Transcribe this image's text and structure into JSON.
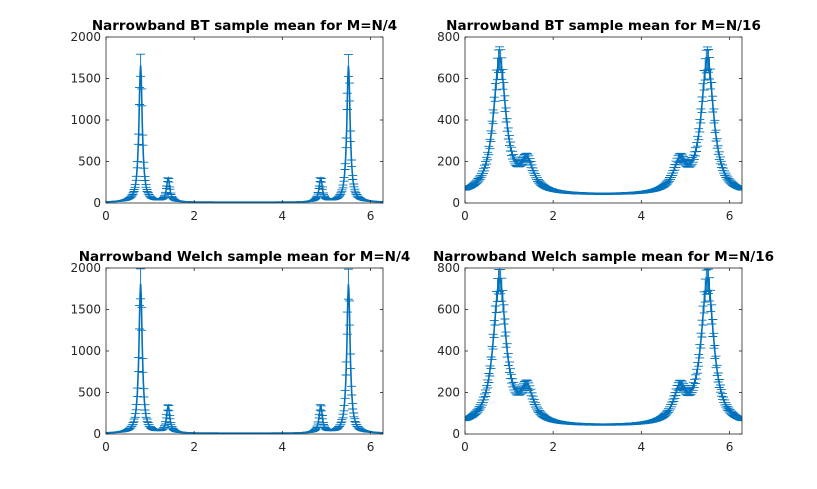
{
  "figure": {
    "background": "#ffffff"
  },
  "chart_data": [
    {
      "type": "line",
      "title": "Narrowband BT sample mean for M=N/4",
      "xlabel": "",
      "ylabel": "",
      "xlim": [
        0,
        6.283
      ],
      "ylim": [
        0,
        2000
      ],
      "xticks": [
        "0",
        "2",
        "4",
        "6"
      ],
      "yticks": [
        "0",
        "500",
        "1000",
        "1500",
        "2000"
      ],
      "error_bars": true,
      "color": "#0072BD",
      "peaks": [
        {
          "center": 0.785,
          "height": 1650,
          "width": 0.045
        },
        {
          "center": 1.41,
          "height": 280,
          "width": 0.045
        },
        {
          "center": 4.87,
          "height": 280,
          "width": 0.045
        },
        {
          "center": 5.5,
          "height": 1650,
          "width": 0.045
        }
      ],
      "baseline": 8,
      "error_ratio": 0.08
    },
    {
      "type": "line",
      "title": "Narrowband BT sample mean for M=N/16",
      "xlabel": "",
      "ylabel": "",
      "xlim": [
        0,
        6.283
      ],
      "ylim": [
        0,
        800
      ],
      "xticks": [
        "0",
        "2",
        "4",
        "6"
      ],
      "yticks": [
        "0",
        "200",
        "400",
        "600",
        "800"
      ],
      "error_bars": true,
      "color": "#0072BD",
      "peaks": [
        {
          "center": 0.785,
          "height": 650,
          "width": 0.17
        },
        {
          "center": 1.41,
          "height": 140,
          "width": 0.18
        },
        {
          "center": 4.87,
          "height": 140,
          "width": 0.18
        },
        {
          "center": 5.5,
          "height": 650,
          "width": 0.17
        }
      ],
      "baseline": 35,
      "error_ratio": 0.08
    },
    {
      "type": "line",
      "title": "Narrowband Welch sample mean for M=N/4",
      "xlabel": "",
      "ylabel": "",
      "xlim": [
        0,
        6.283
      ],
      "ylim": [
        0,
        2000
      ],
      "xticks": [
        "0",
        "2",
        "4",
        "6"
      ],
      "yticks": [
        "0",
        "500",
        "1000",
        "1500",
        "2000"
      ],
      "error_bars": true,
      "color": "#0072BD",
      "peaks": [
        {
          "center": 0.785,
          "height": 1800,
          "width": 0.045
        },
        {
          "center": 1.41,
          "height": 320,
          "width": 0.045
        },
        {
          "center": 4.87,
          "height": 320,
          "width": 0.045
        },
        {
          "center": 5.5,
          "height": 1800,
          "width": 0.045
        }
      ],
      "baseline": 8,
      "error_ratio": 0.1
    },
    {
      "type": "line",
      "title": "Narrowband Welch sample mean for M=N/16",
      "xlabel": "",
      "ylabel": "",
      "xlim": [
        0,
        6.283
      ],
      "ylim": [
        0,
        800
      ],
      "xticks": [
        "0",
        "2",
        "4",
        "6"
      ],
      "yticks": [
        "0",
        "200",
        "400",
        "600",
        "800"
      ],
      "error_bars": true,
      "color": "#0072BD",
      "peaks": [
        {
          "center": 0.785,
          "height": 700,
          "width": 0.17
        },
        {
          "center": 1.41,
          "height": 155,
          "width": 0.18
        },
        {
          "center": 4.87,
          "height": 155,
          "width": 0.18
        },
        {
          "center": 5.5,
          "height": 700,
          "width": 0.17
        }
      ],
      "baseline": 35,
      "error_ratio": 0.08
    }
  ]
}
